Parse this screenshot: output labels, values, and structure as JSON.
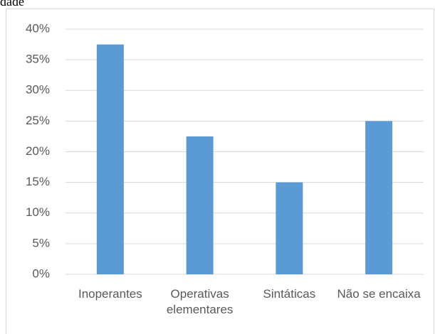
{
  "caption": "dade",
  "chart_data": {
    "type": "bar",
    "categories": [
      "Inoperantes",
      "Operativas elementares",
      "Sintáticas",
      "Não se encaixa"
    ],
    "values": [
      37.5,
      22.5,
      15,
      25
    ],
    "color": "#5b9bd5",
    "ylim": [
      0,
      40
    ],
    "yticks": [
      {
        "value": 0,
        "label": "0%"
      },
      {
        "value": 5,
        "label": "5%"
      },
      {
        "value": 10,
        "label": "10%"
      },
      {
        "value": 15,
        "label": "15%"
      },
      {
        "value": 20,
        "label": "20%"
      },
      {
        "value": 25,
        "label": "25%"
      },
      {
        "value": 30,
        "label": "30%"
      },
      {
        "value": 35,
        "label": "35%"
      },
      {
        "value": 40,
        "label": "40%"
      }
    ],
    "grid": true
  }
}
